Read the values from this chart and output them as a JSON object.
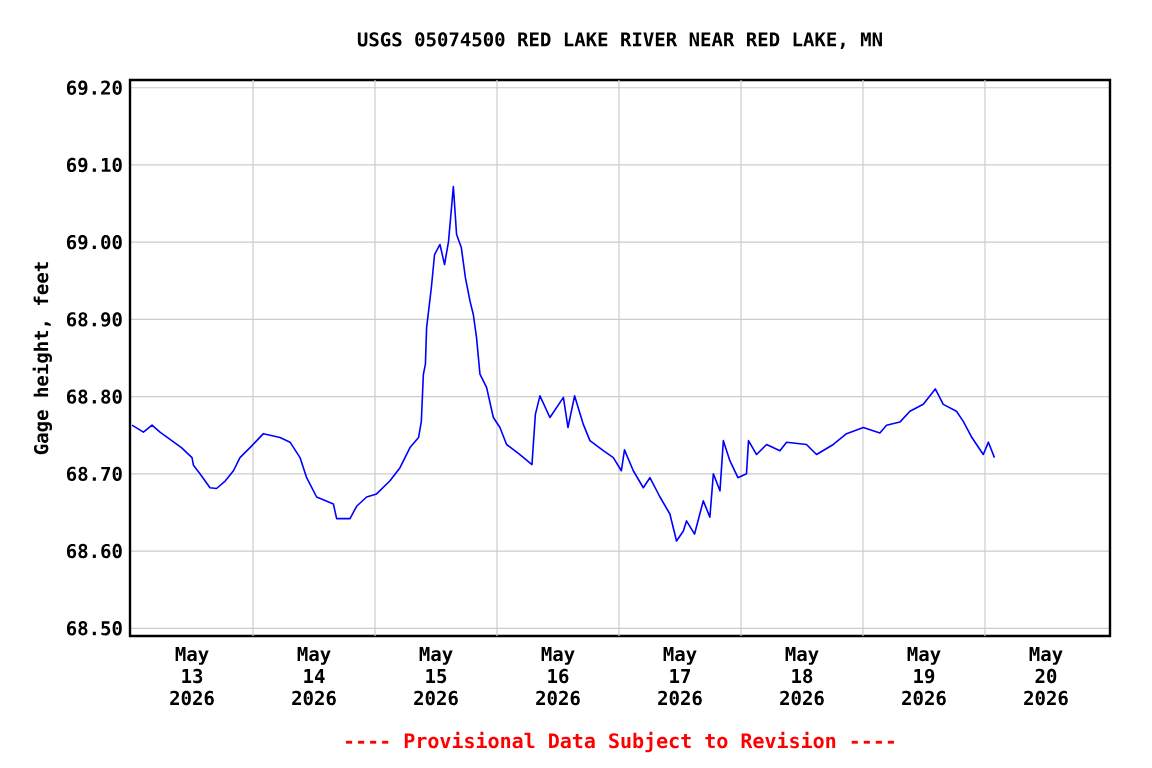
{
  "chart_data": {
    "type": "line",
    "title": "USGS 05074500 RED LAKE RIVER NEAR RED LAKE, MN",
    "ylabel": "Gage height, feet",
    "annotations": [
      "---- Provisional Data Subject to Revision ----"
    ],
    "xlim": [
      "2026-05-12T11:48",
      "2026-05-20T12:36"
    ],
    "xticks": [
      {
        "value": "2026-05-13T00:00",
        "label": "May 13 2026"
      },
      {
        "value": "2026-05-14T00:00",
        "label": "May 14 2026"
      },
      {
        "value": "2026-05-15T00:00",
        "label": "May 15 2026"
      },
      {
        "value": "2026-05-16T00:00",
        "label": "May 16 2026"
      },
      {
        "value": "2026-05-17T00:00",
        "label": "May 17 2026"
      },
      {
        "value": "2026-05-18T00:00",
        "label": "May 18 2026"
      },
      {
        "value": "2026-05-19T00:00",
        "label": "May 19 2026"
      },
      {
        "value": "2026-05-20T00:00",
        "label": "May 20 2026"
      },
      {
        "value": "2026-05-13T12:00",
        "label": null
      },
      {
        "value": "2026-05-14T12:00",
        "label": null
      },
      {
        "value": "2026-05-15T12:00",
        "label": null
      },
      {
        "value": "2026-05-16T12:00",
        "label": null
      },
      {
        "value": "2026-05-17T12:00",
        "label": null
      },
      {
        "value": "2026-05-18T12:00",
        "label": null
      },
      {
        "value": "2026-05-19T12:00",
        "label": null
      }
    ],
    "ylim": [
      68.49,
      69.21
    ],
    "yticks": [
      {
        "value": 68.5,
        "label": "68.50"
      },
      {
        "value": 68.6,
        "label": "68.60"
      },
      {
        "value": 68.7,
        "label": "68.70"
      },
      {
        "value": 68.8,
        "label": "68.80"
      },
      {
        "value": 68.9,
        "label": "68.90"
      },
      {
        "value": 69.0,
        "label": "69.00"
      },
      {
        "value": 69.1,
        "label": "69.10"
      },
      {
        "value": 69.2,
        "label": "69.20"
      }
    ],
    "grid": true,
    "marker": "none",
    "line_style": "solid",
    "series": [
      {
        "color": "#0000ff",
        "x": [
          "2026-05-12T12:12",
          "2026-05-12T14:26",
          "2026-05-12T16:08",
          "2026-05-12T17:42",
          "2026-05-12T21:55",
          "2026-05-13T00:00",
          "2026-05-13T00:17",
          "2026-05-13T01:34",
          "2026-05-13T03:32",
          "2026-05-13T04:50",
          "2026-05-13T06:34",
          "2026-05-13T08:09",
          "2026-05-13T09:26",
          "2026-05-13T11:25",
          "2026-05-13T14:03",
          "2026-05-13T17:19",
          "2026-05-13T19:17",
          "2026-05-13T21:15",
          "2026-05-13T22:33",
          "2026-05-14T00:31",
          "2026-05-14T03:49",
          "2026-05-14T04:27",
          "2026-05-14T07:05",
          "2026-05-14T08:23",
          "2026-05-14T10:21",
          "2026-05-14T12:19",
          "2026-05-14T14:57",
          "2026-05-14T16:55",
          "2026-05-14T18:53",
          "2026-05-14T20:34",
          "2026-05-14T21:07",
          "2026-05-14T21:31",
          "2026-05-14T21:55",
          "2026-05-14T22:09",
          "2026-05-14T23:05",
          "2026-05-14T23:43",
          "2026-05-15T00:47",
          "2026-05-15T01:41",
          "2026-05-15T02:28",
          "2026-05-15T03:25",
          "2026-05-15T04:03",
          "2026-05-15T04:59",
          "2026-05-15T05:47",
          "2026-05-15T06:41",
          "2026-05-15T07:21",
          "2026-05-15T07:59",
          "2026-05-15T08:39",
          "2026-05-15T09:57",
          "2026-05-15T11:17",
          "2026-05-15T12:35",
          "2026-05-15T13:53",
          "2026-05-15T16:31",
          "2026-05-15T18:53",
          "2026-05-15T19:33",
          "2026-05-15T20:27",
          "2026-05-15T22:25",
          "2026-05-16T01:04",
          "2026-05-16T01:58",
          "2026-05-16T03:16",
          "2026-05-16T04:59",
          "2026-05-16T06:17",
          "2026-05-16T08:55",
          "2026-05-16T10:53",
          "2026-05-16T12:28",
          "2026-05-16T13:05",
          "2026-05-16T14:49",
          "2026-05-16T16:47",
          "2026-05-16T18:05",
          "2026-05-16T20:04",
          "2026-05-16T22:01",
          "2026-05-16T23:19",
          "2026-05-17T00:40",
          "2026-05-17T01:17",
          "2026-05-17T02:52",
          "2026-05-17T04:35",
          "2026-05-17T05:53",
          "2026-05-17T06:34",
          "2026-05-17T07:52",
          "2026-05-17T08:32",
          "2026-05-17T09:49",
          "2026-05-17T11:24",
          "2026-05-17T13:05",
          "2026-05-17T13:29",
          "2026-05-17T15:04",
          "2026-05-17T17:02",
          "2026-05-17T19:40",
          "2026-05-17T20:58",
          "2026-05-18T00:53",
          "2026-05-18T02:52",
          "2026-05-18T06:10",
          "2026-05-18T08:46",
          "2026-05-18T12:04",
          "2026-05-18T15:20",
          "2026-05-18T16:38",
          "2026-05-18T19:16",
          "2026-05-18T21:14",
          "2026-05-18T23:52",
          "2026-05-19T02:14",
          "2026-05-19T03:48",
          "2026-05-19T06:24",
          "2026-05-19T07:44",
          "2026-05-19T09:26",
          "2026-05-19T11:40",
          "2026-05-19T12:41",
          "2026-05-19T13:52"
        ],
        "values": [
          68.763,
          68.754,
          68.763,
          68.754,
          68.734,
          68.721,
          68.711,
          68.7,
          68.682,
          68.681,
          68.691,
          68.704,
          68.721,
          68.734,
          68.752,
          68.747,
          68.741,
          68.721,
          68.695,
          68.67,
          68.661,
          68.642,
          68.642,
          68.658,
          68.67,
          68.674,
          68.691,
          68.708,
          68.734,
          68.747,
          68.768,
          68.829,
          68.842,
          68.889,
          68.941,
          68.984,
          68.997,
          68.971,
          69.001,
          69.072,
          69.01,
          68.993,
          68.954,
          68.924,
          68.906,
          68.876,
          68.829,
          68.812,
          68.773,
          68.76,
          68.738,
          68.725,
          68.712,
          68.777,
          68.801,
          68.773,
          68.799,
          68.76,
          68.801,
          68.764,
          68.743,
          68.73,
          68.721,
          68.704,
          68.731,
          68.704,
          68.682,
          68.695,
          68.67,
          68.648,
          68.613,
          68.626,
          68.639,
          68.622,
          68.665,
          68.644,
          68.7,
          68.678,
          68.743,
          68.717,
          68.695,
          68.7,
          68.743,
          68.725,
          68.738,
          68.73,
          68.741,
          68.738,
          68.725,
          68.738,
          68.752,
          68.76,
          68.753,
          68.763,
          68.767,
          68.781,
          68.79,
          68.81,
          68.79,
          68.781,
          68.768,
          68.747,
          68.725,
          68.741,
          68.721
        ]
      }
    ]
  }
}
